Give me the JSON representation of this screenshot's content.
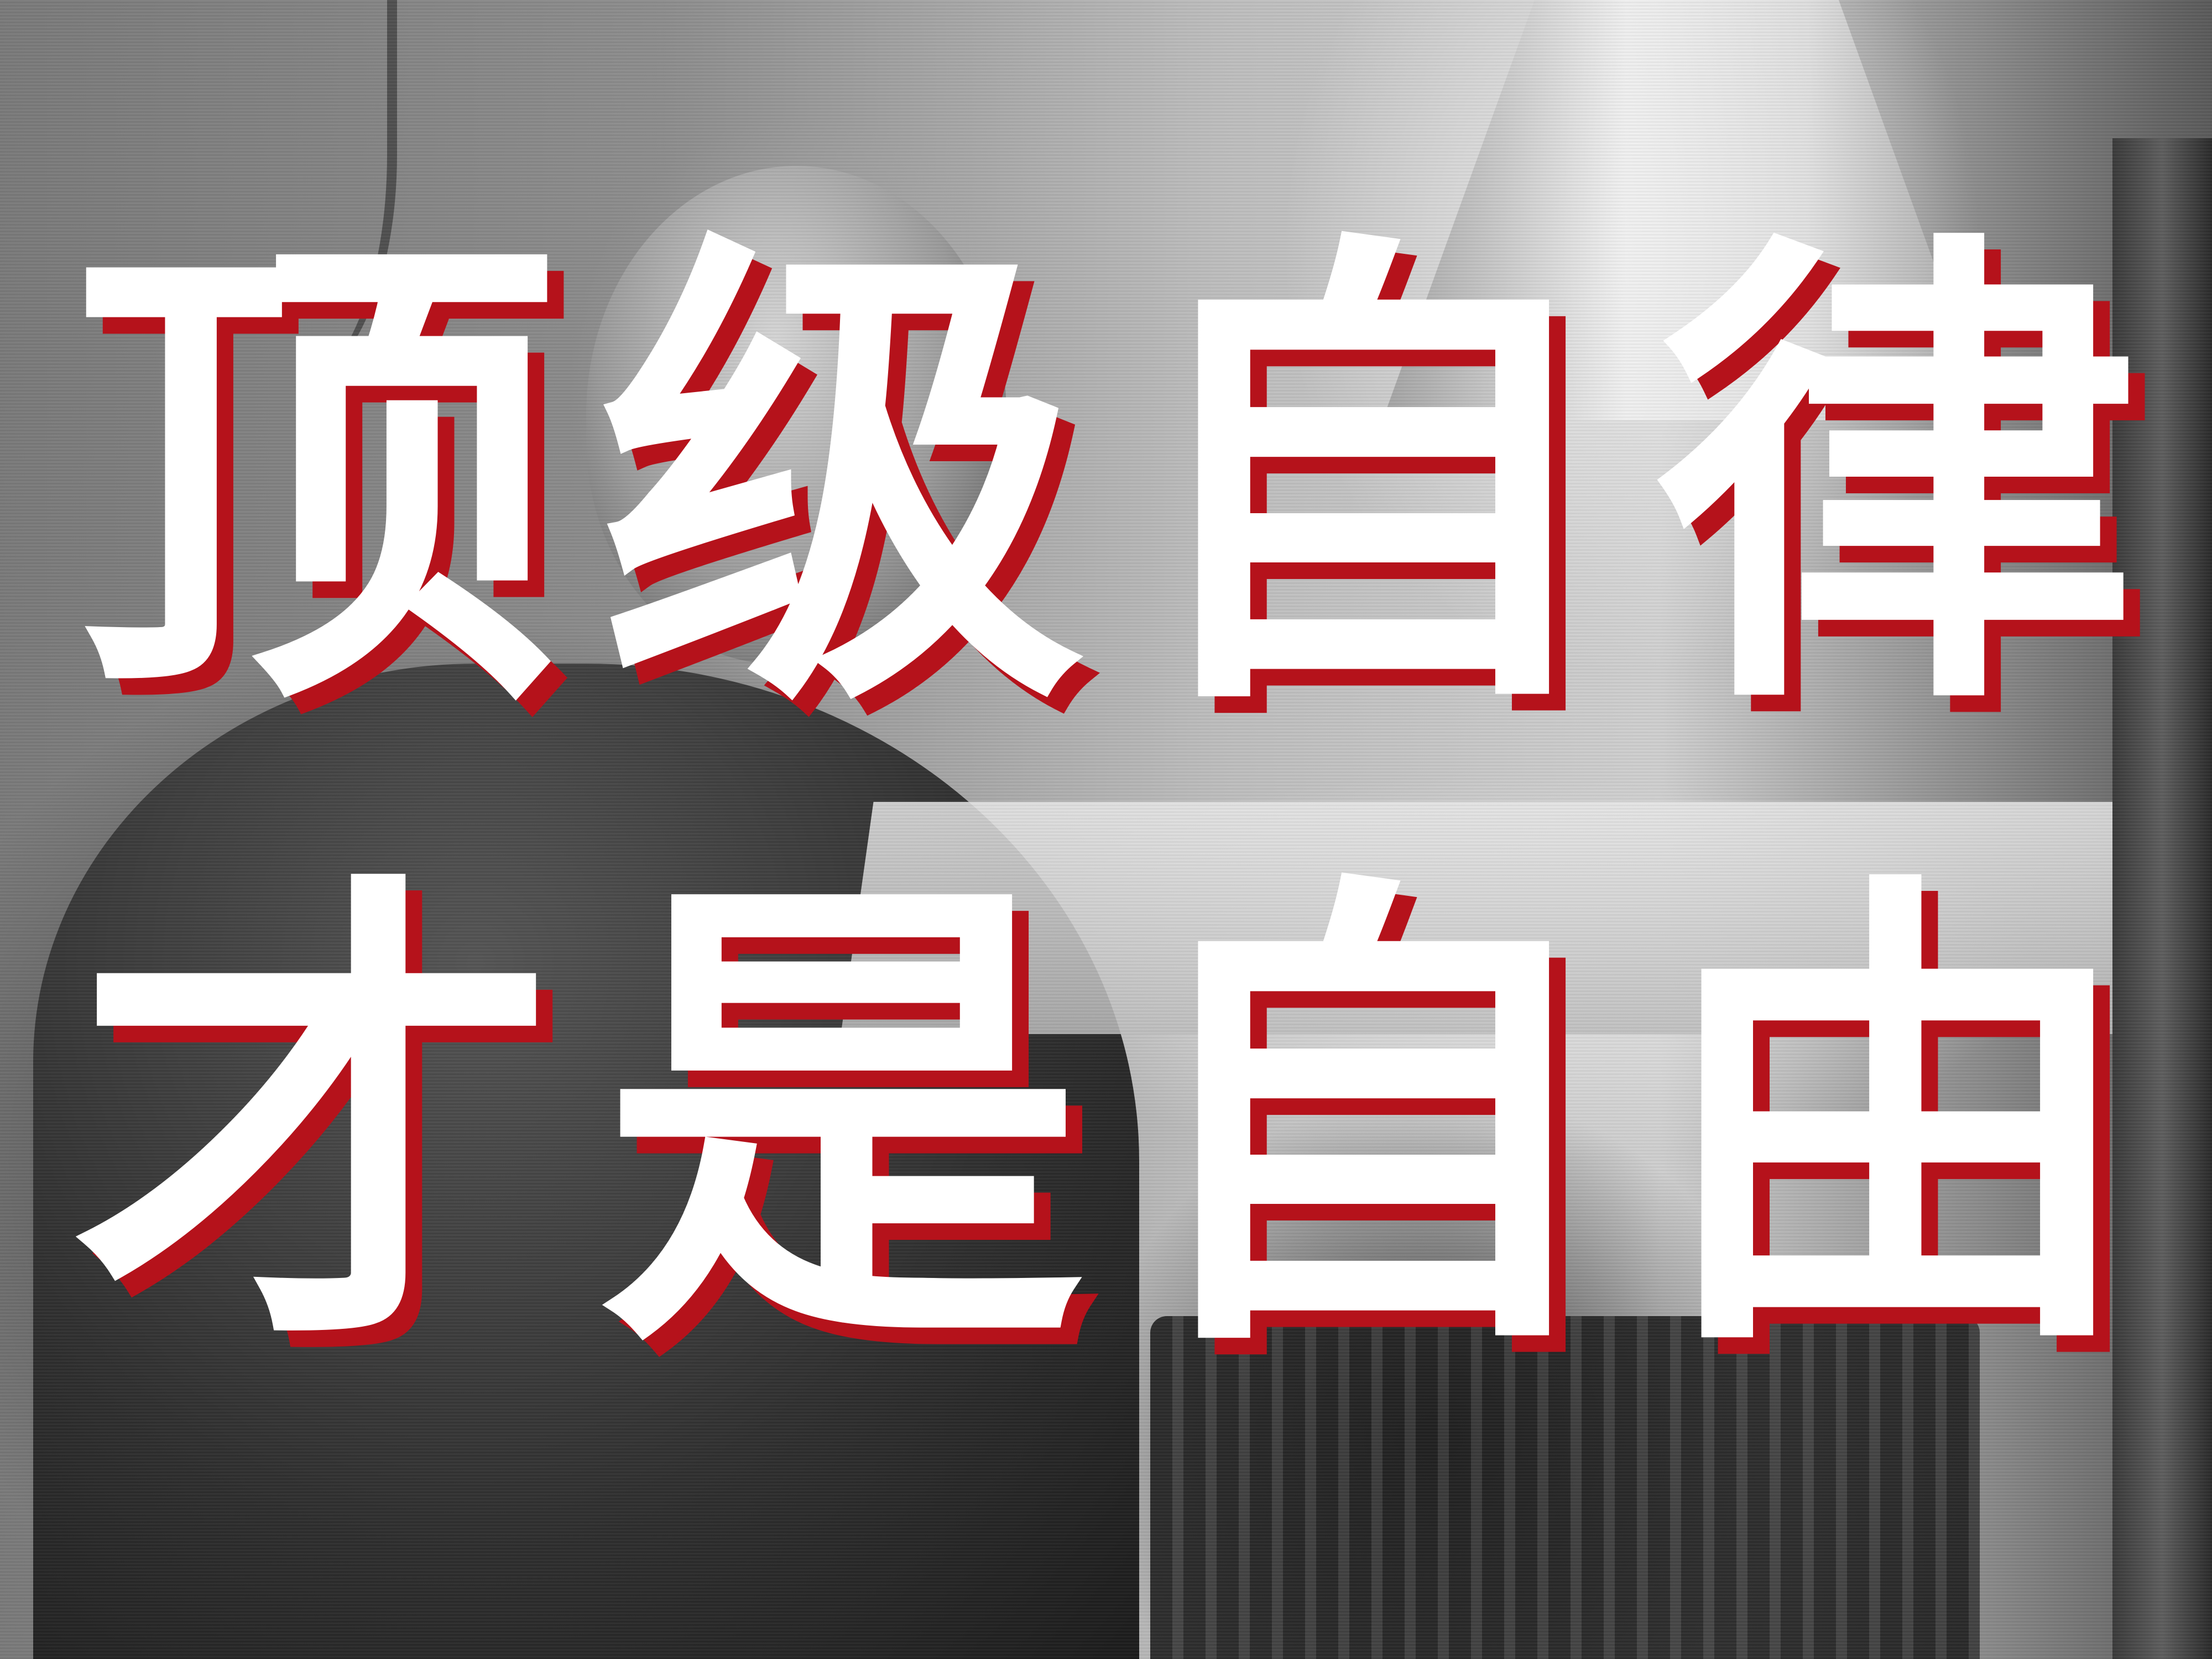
{
  "headline": {
    "line1": [
      "顶",
      "级",
      "自",
      "律"
    ],
    "line2": [
      "才",
      "是",
      "自",
      "由"
    ]
  },
  "colors": {
    "text": "#ffffff",
    "shadow": "#b5121b"
  }
}
